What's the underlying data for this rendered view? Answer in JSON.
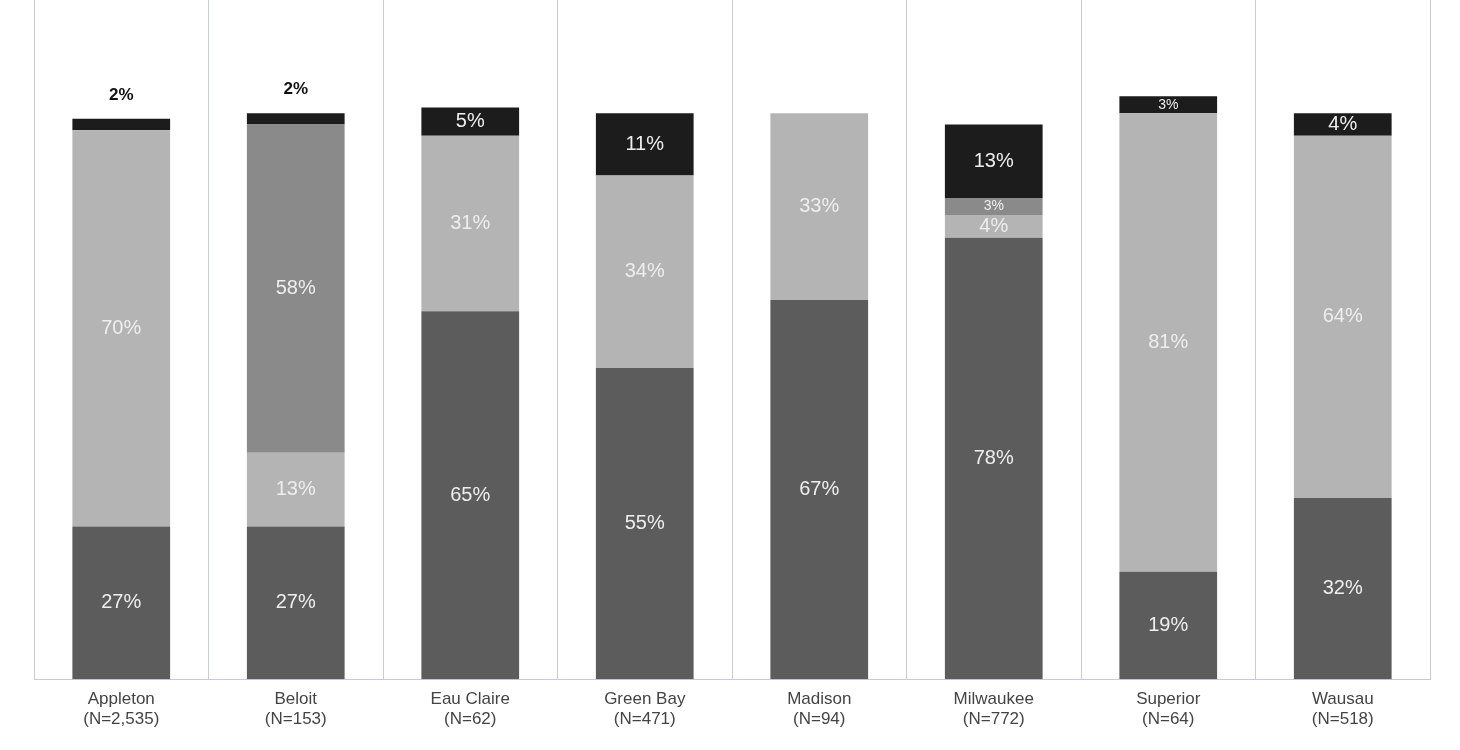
{
  "chart_data": {
    "type": "bar",
    "stacked": true,
    "grid": "x",
    "legend": false,
    "categories": [
      "Appleton\n(N=2,535)",
      "Beloit\n(N=153)",
      "Eau Claire\n(N=62)",
      "Green Bay\n(N=471)",
      "Madison\n(N=94)",
      "Milwaukee\n(N=772)",
      "Superior\n(N=64)",
      "Wausau\n(N=518)"
    ],
    "series": [
      {
        "color": "#5c5c5c",
        "values": [
          27,
          27,
          65,
          55,
          67,
          78,
          19,
          32
        ],
        "value_labels": [
          "27%",
          "27%",
          "65%",
          "55%",
          "67%",
          "78%",
          "19%",
          "32%"
        ]
      },
      {
        "color": "#b4b4b4",
        "values": [
          70,
          13,
          31,
          34,
          33,
          4,
          81,
          64
        ],
        "value_labels": [
          "70%",
          "13%",
          "31%",
          "34%",
          "33%",
          "4%",
          "81%",
          "64%"
        ]
      },
      {
        "color": "#8a8a8a",
        "values": [
          null,
          58,
          null,
          null,
          null,
          3,
          null,
          null
        ],
        "value_labels": [
          null,
          "58%",
          null,
          null,
          null,
          "3%",
          null,
          null
        ]
      },
      {
        "color": "#1c1c1c",
        "values": [
          2,
          2,
          5,
          11,
          null,
          13,
          3,
          4
        ],
        "value_labels": [
          "2%",
          "2%",
          "5%",
          "11%",
          null,
          "13%",
          "3%",
          "4%"
        ]
      }
    ]
  }
}
